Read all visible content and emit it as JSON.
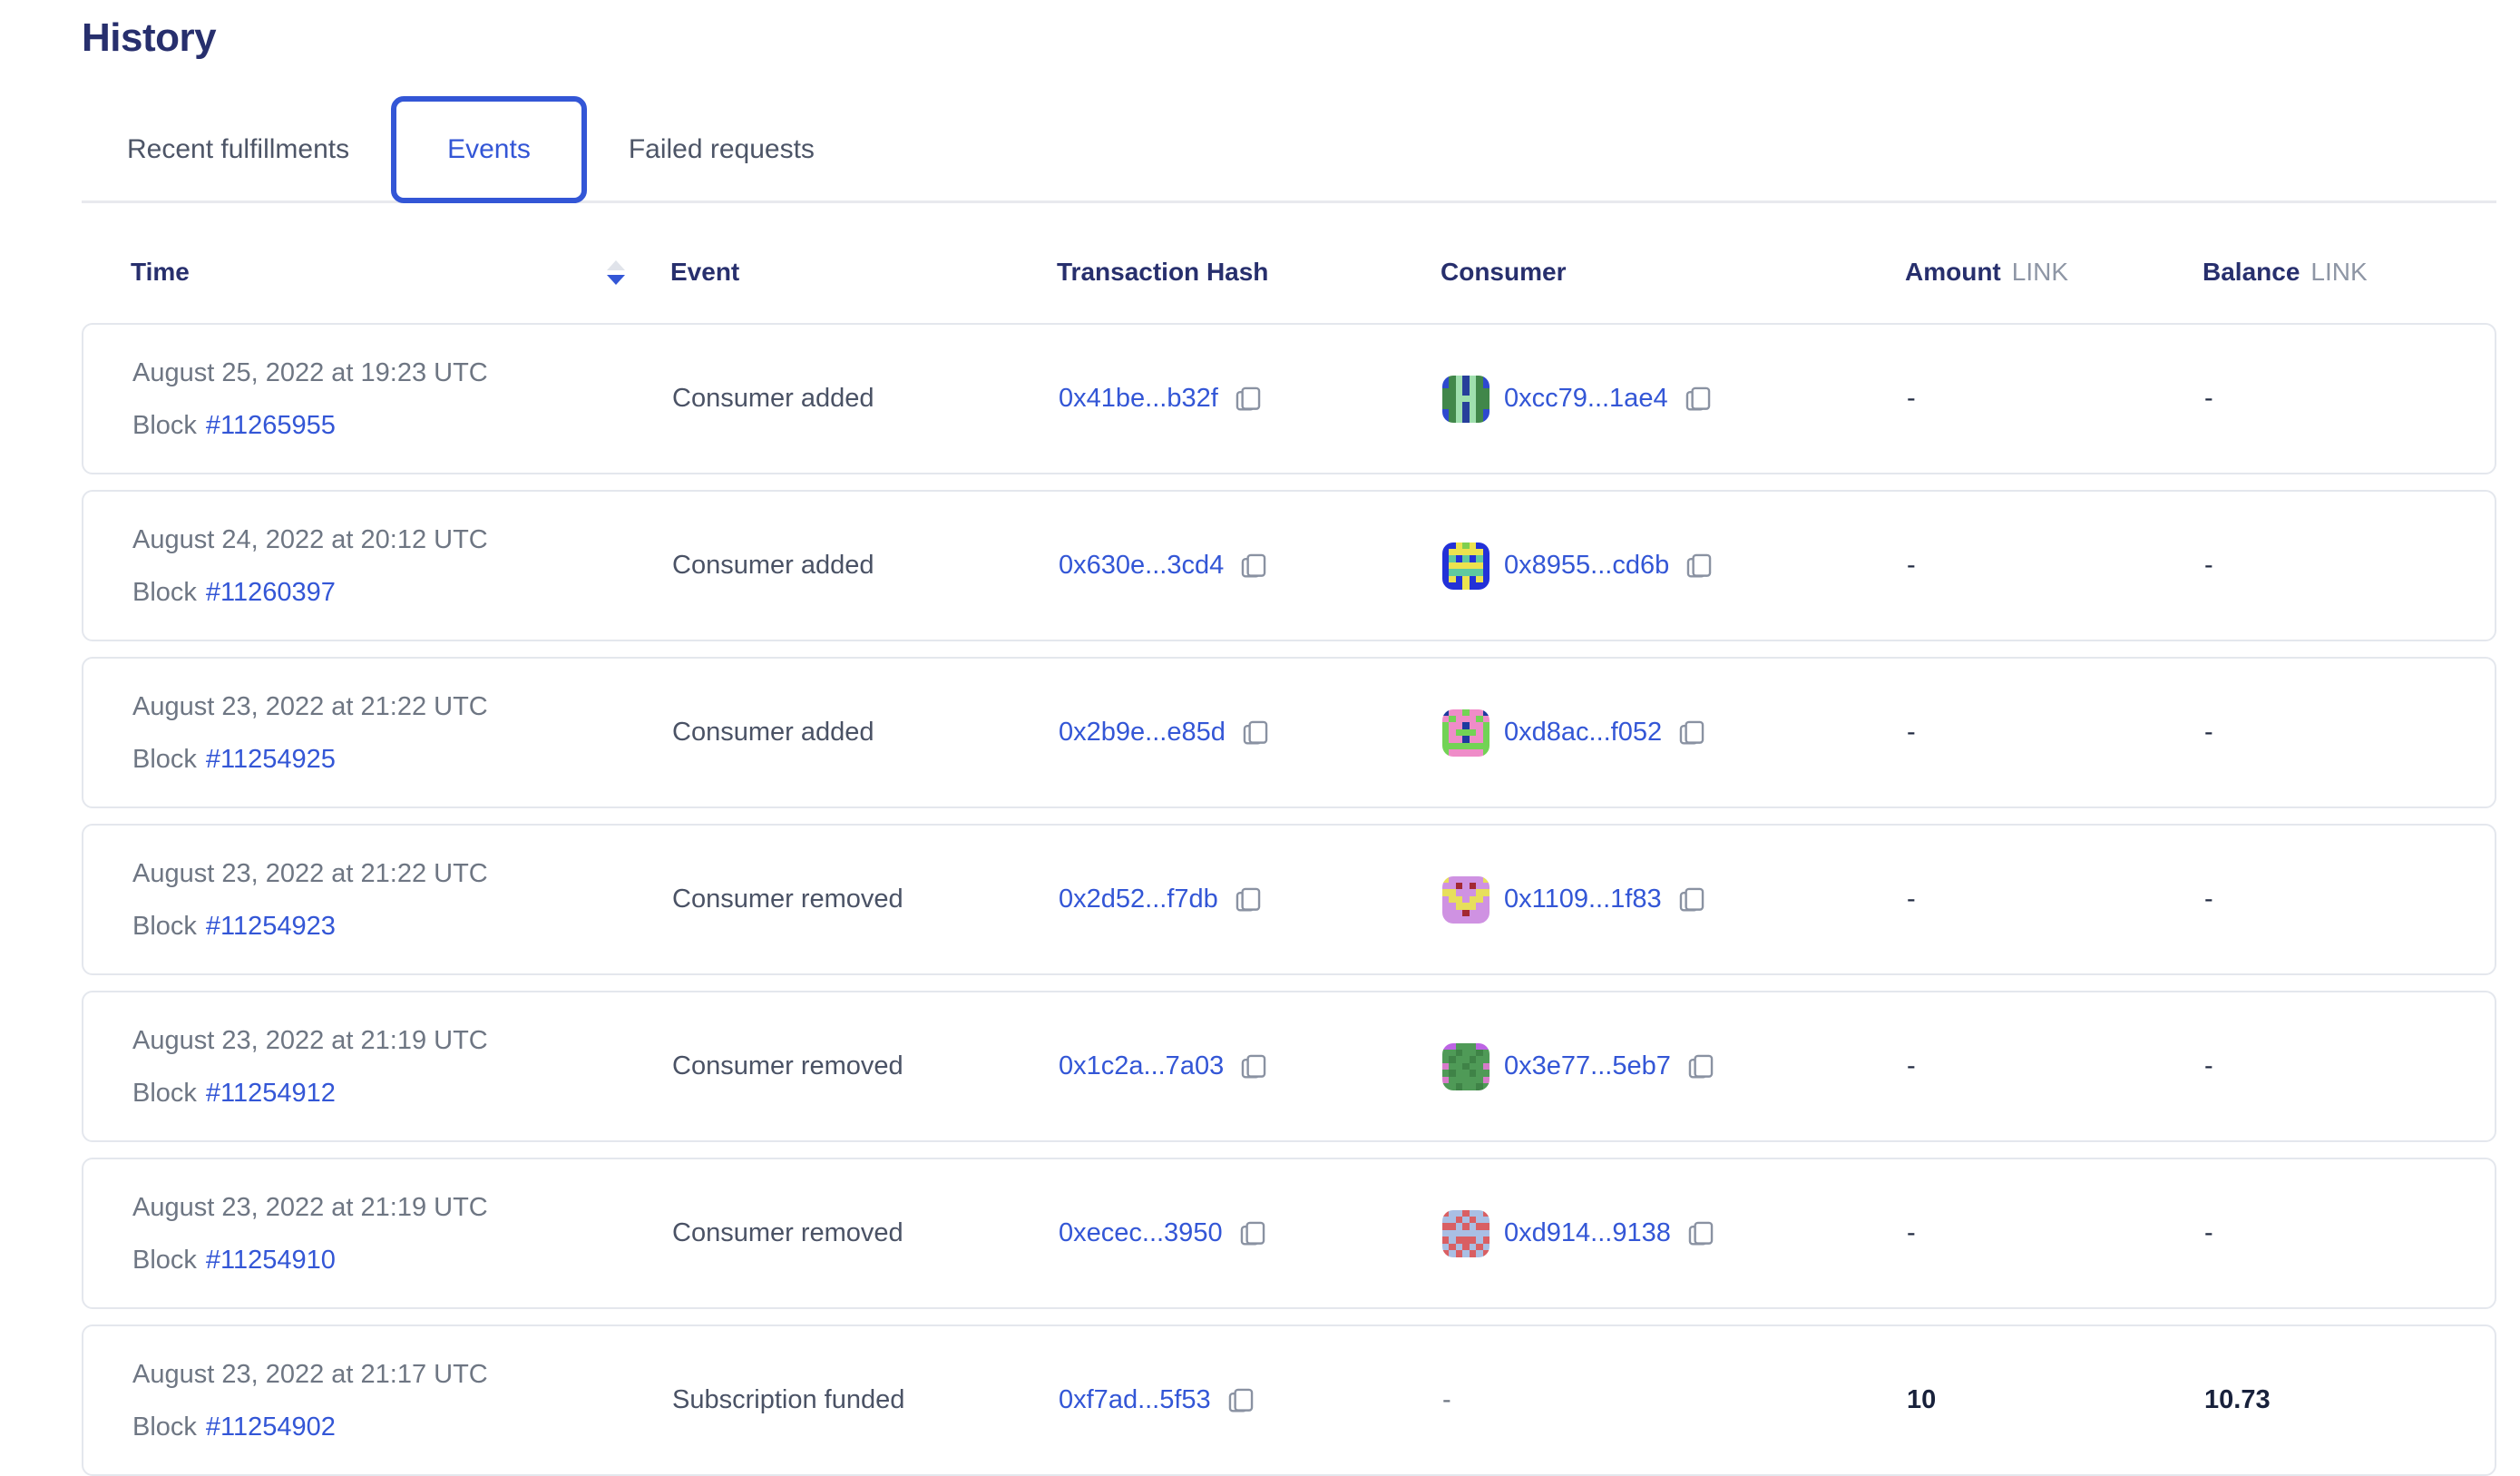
{
  "page": {
    "title": "History"
  },
  "tabs": {
    "items": [
      {
        "label": "Recent fulfillments",
        "active": false
      },
      {
        "label": "Events",
        "active": true
      },
      {
        "label": "Failed requests",
        "active": false
      }
    ]
  },
  "icons": {
    "sort": "sort-arrows-icon (descending active)",
    "copy": "copy-icon"
  },
  "colors": {
    "navy": "#272f6d",
    "accent_blue": "#3356d6",
    "text_gray": "#6e7683",
    "event_text": "#4a5265",
    "card_border": "#e4e7ed",
    "sort_inactive": "#e0e3ea",
    "unit_gray": "#8e96a5"
  },
  "table": {
    "block_label": "Block",
    "sort": {
      "column": "Time",
      "direction": "descending"
    },
    "header": {
      "time": "Time",
      "event": "Event",
      "tx_hash": "Transaction Hash",
      "consumer": "Consumer",
      "amount": "Amount",
      "balance": "Balance",
      "unit": "LINK"
    },
    "rows": [
      {
        "date": "August 25, 2022 at 19:23 UTC",
        "block": "#11265955",
        "event": "Consumer added",
        "tx": "0x41be...b32f",
        "consumer": "0xcc79...1ae4",
        "amount": "-",
        "balance": "-",
        "avatar": {
          "palette": {
            "g": "#41874a",
            "b": "#2e49cf",
            "m": "#9fdfae",
            "n": "#273f9b"
          },
          "grid": [
            "bgmnmgb",
            "bgmnmgb",
            "ggmnmgg",
            "ggmmmgg",
            "ggmnmgg",
            "bgmnmgb",
            "bgmnmgb"
          ]
        }
      },
      {
        "date": "August 24, 2022 at 20:12 UTC",
        "block": "#11260397",
        "event": "Consumer added",
        "tx": "0x630e...3cd4",
        "consumer": "0x8955...cd6b",
        "amount": "-",
        "balance": "-",
        "avatar": {
          "palette": {
            "B": "#2331d8",
            "y": "#ece24f",
            "t": "#5fc99f",
            "g": "#7fcf4e"
          },
          "grid": [
            "BBygyBB",
            "ByyyyyB",
            "BtBtBtB",
            "ByyyyyB",
            "BtttttB",
            "ByByByB",
            "BBByBBB"
          ]
        }
      },
      {
        "date": "August 23, 2022 at 21:22 UTC",
        "block": "#11254925",
        "event": "Consumer added",
        "tx": "0x2b9e...e85d",
        "consumer": "0xd8ac...f052",
        "amount": "-",
        "balance": "-",
        "avatar": {
          "palette": {
            "p": "#ef8cc8",
            "G": "#72d355",
            "n": "#1e3a9f"
          },
          "grid": [
            "nppGppn",
            "pGpppGp",
            "GppnppG",
            "GpGGGpG",
            "GppnppG",
            "GGGGGGG",
            "GpppppG"
          ]
        }
      },
      {
        "date": "August 23, 2022 at 21:22 UTC",
        "block": "#11254923",
        "event": "Consumer removed",
        "tx": "0x2d52...f7db",
        "consumer": "0x1109...1f83",
        "amount": "-",
        "balance": "-",
        "avatar": {
          "palette": {
            "v": "#cf92e2",
            "y": "#e7df5b",
            "r": "#a32833"
          },
          "grid": [
            "yvvvvvy",
            "vvrvrvv",
            "yyvvvyy",
            "vyyvyyv",
            "vvyyyvv",
            "vvvrvvv",
            "vvvvvvv"
          ]
        }
      },
      {
        "date": "August 23, 2022 at 21:19 UTC",
        "block": "#11254912",
        "event": "Consumer removed",
        "tx": "0x1c2a...7a03",
        "consumer": "0x3e77...5eb7",
        "amount": "-",
        "balance": "-",
        "avatar": {
          "palette": {
            "P": "#bd64e4",
            "d": "#4f9a57",
            "e": "#3f8347",
            "k": "#d77bca"
          },
          "grid": [
            "PPdddPP",
            "ddedded",
            "deddedd",
            "kddeddk",
            "deddedd",
            "kdddddk",
            "ddedded"
          ]
        }
      },
      {
        "date": "August 23, 2022 at 21:19 UTC",
        "block": "#11254910",
        "event": "Consumer removed",
        "tx": "0xecec...3950",
        "consumer": "0xd914...9138",
        "amount": "-",
        "balance": "-",
        "avatar": {
          "palette": {
            "R": "#d95f63",
            "L": "#a9bfe4",
            "D": "#c54d52"
          },
          "grid": [
            "RLLRLLR",
            "LLRLRLL",
            "RRLRLRR",
            "LLLLLLL",
            "RLRRRLR",
            "LRLRLRL",
            "RLRLRLR"
          ]
        }
      },
      {
        "date": "August 23, 2022 at 21:17 UTC",
        "block": "#11254902",
        "event": "Subscription funded",
        "tx": "0xf7ad...5f53",
        "consumer": "-",
        "amount": "10",
        "balance": "10.73",
        "avatar": null
      }
    ]
  }
}
